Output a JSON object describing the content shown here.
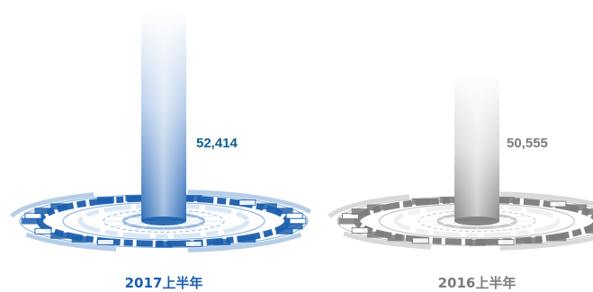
{
  "chart_data": {
    "type": "bar",
    "categories": [
      "2017上半年",
      "2016上半年"
    ],
    "values": [
      52414,
      50555
    ],
    "value_labels": [
      "52,414",
      "50,555"
    ],
    "title": "",
    "xlabel": "",
    "ylabel": "",
    "colors": {
      "2017上半年": {
        "main": "#1b5fad",
        "light": "#cfe1f4",
        "mid": "#7aa6d6",
        "label": "#0d5f8e",
        "category": "#1b5fad"
      },
      "2016上半年": {
        "main": "#7c7c7c",
        "light": "#ececec",
        "mid": "#b9b9b9",
        "label": "#7c7c7c",
        "category": "#7c7c7c"
      }
    }
  }
}
